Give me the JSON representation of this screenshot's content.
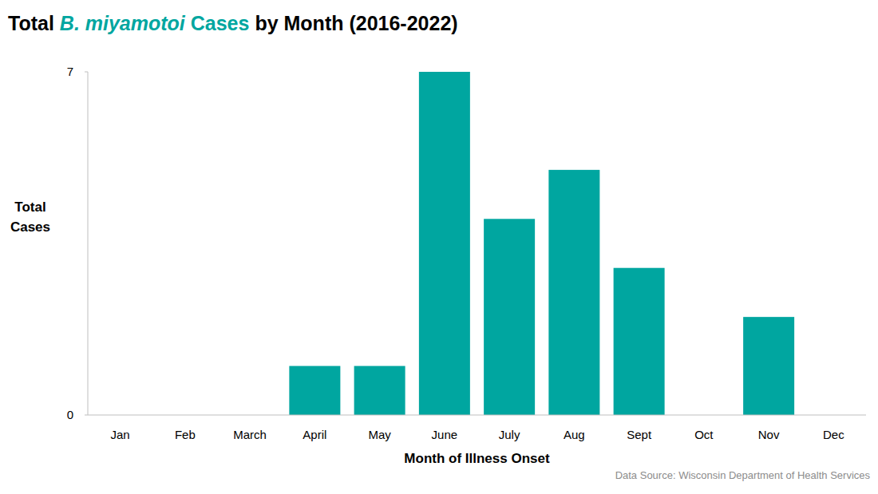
{
  "chart_data": {
    "type": "bar",
    "title": "Total B. miyamotoi Cases by Month (2016-2022)",
    "categories": [
      "Jan",
      "Feb",
      "March",
      "April",
      "May",
      "June",
      "July",
      "Aug",
      "Sept",
      "Oct",
      "Nov",
      "Dec"
    ],
    "values": [
      0,
      0,
      0,
      1,
      1,
      7,
      4,
      5,
      3,
      0,
      2,
      0
    ],
    "color": "#00a6a0",
    "ylim": [
      0,
      7
    ],
    "yticks": [
      0,
      7
    ],
    "grid": false,
    "x_label": "Month of Illness Onset",
    "y_label": "Total Cases",
    "source": "Data Source: Wisconsin Department of Health Services"
  }
}
